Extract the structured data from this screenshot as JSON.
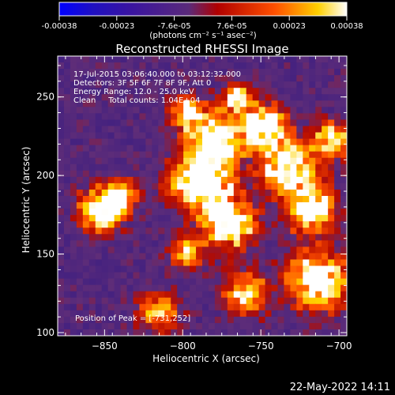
{
  "chart_data": {
    "type": "heatmap",
    "title": "Reconstructed RHESSI Image",
    "xlabel": "Heliocentric X (arcsec)",
    "ylabel": "Heliocentric Y (arcsec)",
    "xlim": [
      -880,
      -695
    ],
    "ylim": [
      98,
      276
    ],
    "xticks": [
      -850,
      -800,
      -750,
      -700
    ],
    "yticks": [
      100,
      150,
      200,
      250
    ],
    "colorbar": {
      "tick_labels": [
        "-0.00038",
        "-0.00023",
        "-7.6e-05",
        "7.6e-05",
        "0.00023",
        "0.00038"
      ],
      "range": [
        -0.00038,
        0.00038
      ],
      "unit_label": "(photons cm⁻² s⁻¹ asec⁻²)",
      "colors": [
        "#0000ff",
        "#3a14a0",
        "#5a2a7a",
        "#b00000",
        "#ff5000",
        "#ffd000",
        "#ffffff"
      ]
    },
    "annotations": {
      "time": "17-Jul-2015 03:06:40.000 to 03:12:32.000",
      "detectors": "Detectors: 3F 5F 6F 7F 8F 9F, Att 0",
      "energy": "Energy Range: 12.0 - 25.0 keV",
      "clean": "Clean     Total counts: 1.04E+04",
      "peak": "Position of Peak = [-731,252]"
    },
    "peak_position": [
      -731,
      252
    ]
  },
  "footer": {
    "date": "22-May-2022 14:11"
  }
}
